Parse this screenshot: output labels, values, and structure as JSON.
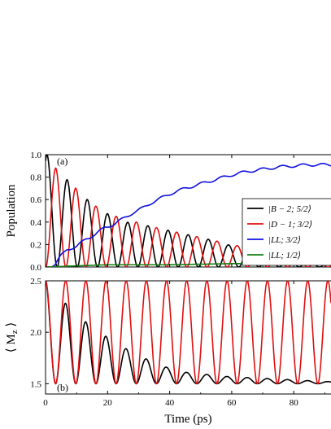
{
  "chart_data": [
    {
      "type": "line",
      "panel_label": "(a)",
      "ylabel": "Population",
      "xlabel": "",
      "xlim": [
        0,
        92
      ],
      "ylim": [
        0,
        1.0
      ],
      "x_ticks": [
        "0",
        "20",
        "40",
        "60",
        "80"
      ],
      "x_tick_values": [
        0,
        20,
        40,
        60,
        80
      ],
      "y_ticks": [
        "0.0",
        "0.2",
        "0.4",
        "0.6",
        "0.8",
        "1.0"
      ],
      "y_tick_values": [
        0,
        0.2,
        0.4,
        0.6,
        0.8,
        1.0
      ],
      "grid": false,
      "legend_position": "right",
      "series": [
        {
          "name": "|B − 2; 5/2⟩",
          "color": "#000000",
          "model": "oscillation",
          "peaks_x": [
            0.5,
            6.5,
            13,
            19.5,
            26,
            32.5,
            39,
            45.5,
            52,
            58.5,
            65,
            71.5,
            78,
            84.5,
            91
          ],
          "peaks_y": [
            1.0,
            0.79,
            0.61,
            0.48,
            0.4,
            0.37,
            0.33,
            0.29,
            0.25,
            0.2,
            0.16,
            0.12,
            0.09,
            0.07,
            0.05
          ]
        },
        {
          "name": "|D − 1; 3/2⟩",
          "color": "#e01010",
          "model": "oscillation",
          "peaks_x": [
            3.3,
            9.8,
            16.3,
            22.8,
            29.3,
            35.8,
            42.3,
            48.8,
            55.3,
            61.8,
            68.3,
            74.8,
            81.3,
            87.8
          ],
          "peaks_y": [
            0.88,
            0.7,
            0.54,
            0.45,
            0.4,
            0.35,
            0.31,
            0.27,
            0.23,
            0.19,
            0.15,
            0.11,
            0.08,
            0.06
          ]
        },
        {
          "name": "|LL; 3/2⟩",
          "color": "#1010e0",
          "model": "curve",
          "x": [
            0,
            3,
            5,
            7,
            10,
            13,
            16,
            19,
            22,
            25,
            28,
            31,
            34,
            37,
            40,
            45,
            50,
            55,
            60,
            65,
            70,
            75,
            80,
            85,
            88,
            92
          ],
          "y": [
            0.0,
            0.02,
            0.1,
            0.16,
            0.18,
            0.25,
            0.29,
            0.35,
            0.38,
            0.43,
            0.48,
            0.52,
            0.57,
            0.61,
            0.65,
            0.7,
            0.74,
            0.78,
            0.82,
            0.85,
            0.87,
            0.89,
            0.9,
            0.91,
            0.91,
            0.91
          ]
        },
        {
          "name": "|LL; 1/2⟩",
          "color": "#108010",
          "model": "curve",
          "x": [
            0,
            10,
            20,
            40,
            60,
            80,
            92
          ],
          "y": [
            0.0,
            0.01,
            0.02,
            0.02,
            0.03,
            0.03,
            0.03
          ]
        }
      ]
    },
    {
      "type": "line",
      "panel_label": "(b)",
      "ylabel": "⟨ M_z ⟩",
      "xlabel": "Time (ps)",
      "xlim": [
        0,
        92
      ],
      "ylim": [
        1.4,
        2.5
      ],
      "x_ticks": [
        "0",
        "20",
        "40",
        "60",
        "80"
      ],
      "x_tick_values": [
        0,
        20,
        40,
        60,
        80
      ],
      "y_ticks": [
        "1.5",
        "2.0",
        "2.5"
      ],
      "y_tick_values": [
        1.5,
        2.0,
        2.5
      ],
      "grid": false,
      "series": [
        {
          "color": "#000000",
          "model": "oscillation_min",
          "baseline": 1.5,
          "peaks_x": [
            0,
            6.5,
            13,
            19.5,
            26,
            32.5,
            39,
            45.5,
            52,
            58.5,
            65,
            71.5,
            78,
            84.5,
            91
          ],
          "peaks_y": [
            2.5,
            2.28,
            2.1,
            1.96,
            1.84,
            1.74,
            1.66,
            1.61,
            1.59,
            1.57,
            1.56,
            1.55,
            1.54,
            1.53,
            1.52
          ]
        },
        {
          "color": "#e01010",
          "model": "oscillation_min",
          "baseline": 1.5,
          "peaks_x": [
            0,
            6.5,
            13,
            19.5,
            26,
            32.5,
            39,
            45.5,
            52,
            58.5,
            65,
            71.5,
            78,
            84.5,
            91
          ],
          "peaks_y": [
            2.5,
            2.5,
            2.5,
            2.5,
            2.5,
            2.5,
            2.5,
            2.5,
            2.5,
            2.5,
            2.5,
            2.5,
            2.5,
            2.5,
            2.5
          ]
        }
      ]
    }
  ]
}
